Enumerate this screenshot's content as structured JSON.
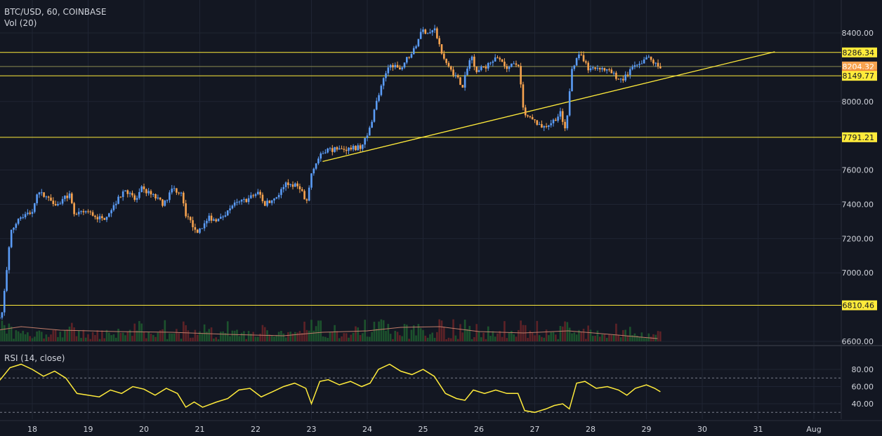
{
  "header": {
    "symbol_line": "BTC/USD, 60, COINBASE",
    "volume_label": "Vol (20)",
    "rsi_label": "RSI (14, close)"
  },
  "colors": {
    "background": "#131722",
    "up": "#5b9cf6",
    "down": "#f7a34f",
    "level": "#ffeb3b",
    "rsi": "#ffeb3b",
    "grid": "#1f2433"
  },
  "chart_data": [
    {
      "type": "candlestick",
      "title": "BTC/USD, 60, COINBASE",
      "interval": "60",
      "x_ticks": [
        "18",
        "19",
        "20",
        "21",
        "22",
        "23",
        "24",
        "25",
        "26",
        "27",
        "28",
        "29",
        "30",
        "31",
        "Aug"
      ],
      "ylim": [
        6580,
        8500
      ],
      "y_ticks": [
        6600,
        7000,
        7200,
        7400,
        7600,
        8000,
        8400
      ],
      "y_tick_labels": [
        "6600.00",
        "7000.00",
        "7200.00",
        "7400.00",
        "7600.00",
        "8000.00",
        "8400.00"
      ],
      "price_labels": [
        {
          "value": 8286.34,
          "label": "8286.34",
          "kind": "level"
        },
        {
          "value": 8204.32,
          "label": "8204.32",
          "kind": "last"
        },
        {
          "value": 8160,
          "label": "11:29",
          "kind": "countdown"
        },
        {
          "value": 8149.77,
          "label": "8149.77",
          "kind": "level"
        },
        {
          "value": 7791.21,
          "label": "7791.21",
          "kind": "level"
        },
        {
          "value": 6810.46,
          "label": "6810.46",
          "kind": "level"
        }
      ],
      "horizontal_levels": [
        8286.34,
        8204.32,
        8149.77,
        7791.21,
        6810.46
      ],
      "trendline": {
        "from": {
          "day": 23.2,
          "price": 7650
        },
        "to": {
          "day": 31.3,
          "price": 8290
        }
      },
      "price_path": [
        {
          "day": 17.25,
          "price": 6710
        },
        {
          "day": 17.5,
          "price": 6760
        },
        {
          "day": 17.65,
          "price": 7230
        },
        {
          "day": 17.8,
          "price": 7320
        },
        {
          "day": 18.05,
          "price": 7360
        },
        {
          "day": 18.15,
          "price": 7470
        },
        {
          "day": 18.3,
          "price": 7440
        },
        {
          "day": 18.5,
          "price": 7400
        },
        {
          "day": 18.7,
          "price": 7460
        },
        {
          "day": 18.8,
          "price": 7330
        },
        {
          "day": 19.0,
          "price": 7360
        },
        {
          "day": 19.3,
          "price": 7310
        },
        {
          "day": 19.5,
          "price": 7390
        },
        {
          "day": 19.7,
          "price": 7490
        },
        {
          "day": 19.9,
          "price": 7420
        },
        {
          "day": 20.0,
          "price": 7490
        },
        {
          "day": 20.2,
          "price": 7450
        },
        {
          "day": 20.4,
          "price": 7400
        },
        {
          "day": 20.55,
          "price": 7490
        },
        {
          "day": 20.7,
          "price": 7470
        },
        {
          "day": 20.8,
          "price": 7330
        },
        {
          "day": 21.0,
          "price": 7240
        },
        {
          "day": 21.2,
          "price": 7320
        },
        {
          "day": 21.4,
          "price": 7310
        },
        {
          "day": 21.6,
          "price": 7390
        },
        {
          "day": 21.9,
          "price": 7430
        },
        {
          "day": 22.1,
          "price": 7470
        },
        {
          "day": 22.2,
          "price": 7400
        },
        {
          "day": 22.4,
          "price": 7440
        },
        {
          "day": 22.6,
          "price": 7520
        },
        {
          "day": 22.85,
          "price": 7500
        },
        {
          "day": 22.95,
          "price": 7390
        },
        {
          "day": 23.05,
          "price": 7600
        },
        {
          "day": 23.15,
          "price": 7660
        },
        {
          "day": 23.3,
          "price": 7720
        },
        {
          "day": 23.6,
          "price": 7720
        },
        {
          "day": 23.9,
          "price": 7730
        },
        {
          "day": 24.05,
          "price": 7800
        },
        {
          "day": 24.2,
          "price": 7990
        },
        {
          "day": 24.35,
          "price": 8140
        },
        {
          "day": 24.45,
          "price": 8230
        },
        {
          "day": 24.6,
          "price": 8180
        },
        {
          "day": 24.75,
          "price": 8250
        },
        {
          "day": 24.9,
          "price": 8310
        },
        {
          "day": 25.0,
          "price": 8420
        },
        {
          "day": 25.15,
          "price": 8400
        },
        {
          "day": 25.25,
          "price": 8420
        },
        {
          "day": 25.4,
          "price": 8250
        },
        {
          "day": 25.6,
          "price": 8160
        },
        {
          "day": 25.75,
          "price": 8090
        },
        {
          "day": 25.9,
          "price": 8270
        },
        {
          "day": 26.0,
          "price": 8180
        },
        {
          "day": 26.2,
          "price": 8210
        },
        {
          "day": 26.4,
          "price": 8260
        },
        {
          "day": 26.55,
          "price": 8200
        },
        {
          "day": 26.75,
          "price": 8220
        },
        {
          "day": 26.85,
          "price": 7920
        },
        {
          "day": 27.0,
          "price": 7890
        },
        {
          "day": 27.2,
          "price": 7850
        },
        {
          "day": 27.35,
          "price": 7880
        },
        {
          "day": 27.5,
          "price": 7930
        },
        {
          "day": 27.6,
          "price": 7810
        },
        {
          "day": 27.7,
          "price": 8200
        },
        {
          "day": 27.85,
          "price": 8270
        },
        {
          "day": 28.0,
          "price": 8190
        },
        {
          "day": 28.2,
          "price": 8200
        },
        {
          "day": 28.4,
          "price": 8170
        },
        {
          "day": 28.6,
          "price": 8120
        },
        {
          "day": 28.8,
          "price": 8200
        },
        {
          "day": 28.95,
          "price": 8210
        },
        {
          "day": 29.05,
          "price": 8260
        },
        {
          "day": 29.25,
          "price": 8204.32
        }
      ],
      "volume_ma_path": [
        {
          "day": 17.3,
          "volume_pct": 30
        },
        {
          "day": 17.8,
          "volume_pct": 42
        },
        {
          "day": 18.5,
          "volume_pct": 32
        },
        {
          "day": 19.5,
          "volume_pct": 28
        },
        {
          "day": 20.5,
          "volume_pct": 26
        },
        {
          "day": 21.5,
          "volume_pct": 20
        },
        {
          "day": 22.5,
          "volume_pct": 16
        },
        {
          "day": 23.2,
          "volume_pct": 26
        },
        {
          "day": 24.0,
          "volume_pct": 30
        },
        {
          "day": 24.6,
          "volume_pct": 40
        },
        {
          "day": 25.3,
          "volume_pct": 42
        },
        {
          "day": 26.0,
          "volume_pct": 28
        },
        {
          "day": 26.8,
          "volume_pct": 24
        },
        {
          "day": 27.6,
          "volume_pct": 30
        },
        {
          "day": 28.2,
          "volume_pct": 22
        },
        {
          "day": 29.2,
          "volume_pct": 8
        }
      ]
    },
    {
      "type": "line",
      "title": "RSI (14, close)",
      "ylim": [
        22,
        93
      ],
      "y_ticks": [
        40,
        60,
        80
      ],
      "y_tick_labels": [
        "40.00",
        "60.00",
        "80.00"
      ],
      "bands": [
        70,
        30
      ],
      "series": [
        {
          "name": "RSI",
          "points": [
            {
              "day": 17.25,
              "value": 55
            },
            {
              "day": 17.45,
              "value": 70
            },
            {
              "day": 17.6,
              "value": 82
            },
            {
              "day": 17.8,
              "value": 86
            },
            {
              "day": 18.0,
              "value": 80
            },
            {
              "day": 18.2,
              "value": 72
            },
            {
              "day": 18.4,
              "value": 78
            },
            {
              "day": 18.6,
              "value": 70
            },
            {
              "day": 18.8,
              "value": 52
            },
            {
              "day": 19.0,
              "value": 50
            },
            {
              "day": 19.2,
              "value": 48
            },
            {
              "day": 19.4,
              "value": 56
            },
            {
              "day": 19.6,
              "value": 52
            },
            {
              "day": 19.8,
              "value": 60
            },
            {
              "day": 20.0,
              "value": 57
            },
            {
              "day": 20.2,
              "value": 50
            },
            {
              "day": 20.4,
              "value": 58
            },
            {
              "day": 20.6,
              "value": 52
            },
            {
              "day": 20.75,
              "value": 36
            },
            {
              "day": 20.9,
              "value": 42
            },
            {
              "day": 21.05,
              "value": 36
            },
            {
              "day": 21.3,
              "value": 42
            },
            {
              "day": 21.5,
              "value": 46
            },
            {
              "day": 21.7,
              "value": 56
            },
            {
              "day": 21.9,
              "value": 58
            },
            {
              "day": 22.1,
              "value": 48
            },
            {
              "day": 22.3,
              "value": 54
            },
            {
              "day": 22.5,
              "value": 60
            },
            {
              "day": 22.7,
              "value": 64
            },
            {
              "day": 22.9,
              "value": 58
            },
            {
              "day": 23.0,
              "value": 40
            },
            {
              "day": 23.15,
              "value": 66
            },
            {
              "day": 23.3,
              "value": 68
            },
            {
              "day": 23.5,
              "value": 62
            },
            {
              "day": 23.7,
              "value": 66
            },
            {
              "day": 23.9,
              "value": 60
            },
            {
              "day": 24.05,
              "value": 64
            },
            {
              "day": 24.2,
              "value": 80
            },
            {
              "day": 24.4,
              "value": 86
            },
            {
              "day": 24.6,
              "value": 78
            },
            {
              "day": 24.8,
              "value": 74
            },
            {
              "day": 25.0,
              "value": 80
            },
            {
              "day": 25.2,
              "value": 72
            },
            {
              "day": 25.4,
              "value": 52
            },
            {
              "day": 25.6,
              "value": 46
            },
            {
              "day": 25.75,
              "value": 44
            },
            {
              "day": 25.9,
              "value": 56
            },
            {
              "day": 26.1,
              "value": 52
            },
            {
              "day": 26.3,
              "value": 56
            },
            {
              "day": 26.5,
              "value": 52
            },
            {
              "day": 26.7,
              "value": 52
            },
            {
              "day": 26.82,
              "value": 32
            },
            {
              "day": 27.0,
              "value": 30
            },
            {
              "day": 27.2,
              "value": 34
            },
            {
              "day": 27.35,
              "value": 38
            },
            {
              "day": 27.5,
              "value": 40
            },
            {
              "day": 27.62,
              "value": 34
            },
            {
              "day": 27.75,
              "value": 64
            },
            {
              "day": 27.9,
              "value": 66
            },
            {
              "day": 28.1,
              "value": 58
            },
            {
              "day": 28.3,
              "value": 60
            },
            {
              "day": 28.5,
              "value": 56
            },
            {
              "day": 28.65,
              "value": 50
            },
            {
              "day": 28.8,
              "value": 58
            },
            {
              "day": 29.0,
              "value": 62
            },
            {
              "day": 29.15,
              "value": 58
            },
            {
              "day": 29.25,
              "value": 54
            }
          ]
        }
      ]
    }
  ]
}
